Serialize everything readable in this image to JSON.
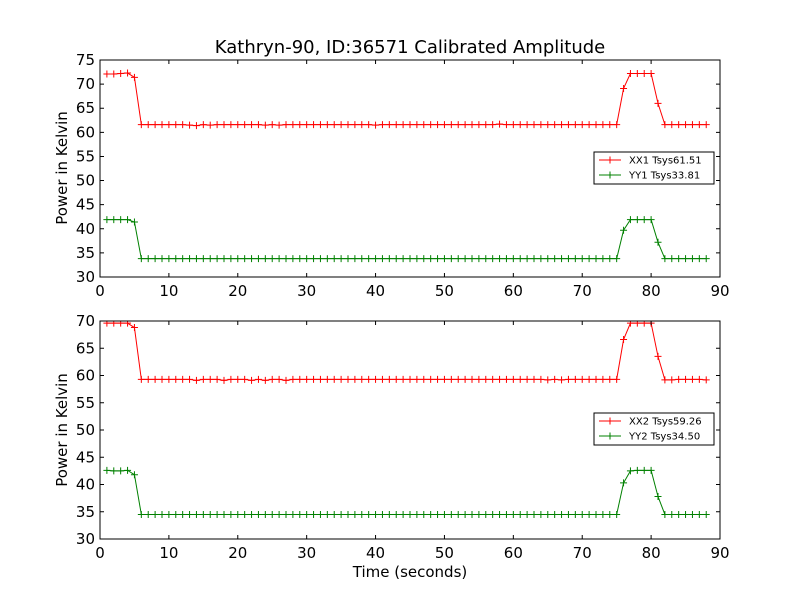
{
  "chart_data": [
    {
      "type": "line",
      "title": "Kathryn-90, ID:36571 Calibrated Amplitude",
      "xlabel": "",
      "ylabel": "Power in Kelvin",
      "xlim": [
        0,
        90
      ],
      "ylim": [
        30,
        75
      ],
      "xticks": [
        0,
        10,
        20,
        30,
        40,
        50,
        60,
        70,
        80,
        90
      ],
      "yticks": [
        30,
        35,
        40,
        45,
        50,
        55,
        60,
        65,
        70,
        75
      ],
      "grid": false,
      "legend_position": "center-right",
      "x": [
        1,
        2,
        3,
        4,
        5,
        6,
        7,
        8,
        9,
        10,
        11,
        12,
        13,
        14,
        15,
        16,
        17,
        18,
        19,
        20,
        21,
        22,
        23,
        24,
        25,
        26,
        27,
        28,
        29,
        30,
        31,
        32,
        33,
        34,
        35,
        36,
        37,
        38,
        39,
        40,
        41,
        42,
        43,
        44,
        45,
        46,
        47,
        48,
        49,
        50,
        51,
        52,
        53,
        54,
        55,
        56,
        57,
        58,
        59,
        60,
        61,
        62,
        63,
        64,
        65,
        66,
        67,
        68,
        69,
        70,
        71,
        72,
        73,
        74,
        75,
        76,
        77,
        78,
        79,
        80,
        81,
        82,
        83,
        84,
        85,
        86,
        87,
        88
      ],
      "series": [
        {
          "name": "XX1 Tsys61.51",
          "color": "#ff0000",
          "values": [
            72.1,
            72.1,
            72.2,
            72.3,
            71.4,
            61.6,
            61.6,
            61.6,
            61.6,
            61.6,
            61.6,
            61.6,
            61.5,
            61.4,
            61.6,
            61.5,
            61.6,
            61.6,
            61.6,
            61.6,
            61.6,
            61.6,
            61.6,
            61.5,
            61.6,
            61.5,
            61.6,
            61.6,
            61.6,
            61.6,
            61.6,
            61.6,
            61.6,
            61.6,
            61.6,
            61.6,
            61.6,
            61.6,
            61.6,
            61.5,
            61.6,
            61.6,
            61.6,
            61.6,
            61.6,
            61.6,
            61.6,
            61.6,
            61.6,
            61.6,
            61.6,
            61.6,
            61.6,
            61.6,
            61.6,
            61.6,
            61.6,
            61.7,
            61.6,
            61.6,
            61.6,
            61.6,
            61.6,
            61.6,
            61.6,
            61.6,
            61.6,
            61.6,
            61.6,
            61.6,
            61.6,
            61.6,
            61.6,
            61.6,
            61.6,
            69.1,
            72.2,
            72.2,
            72.2,
            72.2,
            66.0,
            61.6,
            61.6,
            61.6,
            61.6,
            61.6,
            61.6,
            61.6
          ]
        },
        {
          "name": "YY1 Tsys33.81",
          "color": "#008000",
          "values": [
            41.9,
            41.9,
            41.9,
            41.9,
            41.4,
            33.8,
            33.8,
            33.8,
            33.8,
            33.8,
            33.8,
            33.8,
            33.8,
            33.8,
            33.8,
            33.8,
            33.8,
            33.8,
            33.8,
            33.8,
            33.8,
            33.8,
            33.8,
            33.8,
            33.8,
            33.8,
            33.8,
            33.8,
            33.8,
            33.8,
            33.8,
            33.8,
            33.8,
            33.8,
            33.8,
            33.8,
            33.8,
            33.8,
            33.8,
            33.8,
            33.8,
            33.8,
            33.8,
            33.8,
            33.8,
            33.8,
            33.8,
            33.8,
            33.8,
            33.8,
            33.8,
            33.8,
            33.8,
            33.8,
            33.8,
            33.8,
            33.8,
            33.8,
            33.8,
            33.8,
            33.8,
            33.8,
            33.8,
            33.8,
            33.8,
            33.8,
            33.8,
            33.8,
            33.8,
            33.8,
            33.8,
            33.8,
            33.8,
            33.8,
            33.8,
            39.7,
            41.9,
            41.9,
            41.9,
            41.9,
            37.2,
            33.8,
            33.8,
            33.8,
            33.8,
            33.8,
            33.8,
            33.8
          ]
        }
      ]
    },
    {
      "type": "line",
      "title": "",
      "xlabel": "Time (seconds)",
      "ylabel": "Power in Kelvin",
      "xlim": [
        0,
        90
      ],
      "ylim": [
        30,
        70
      ],
      "xticks": [
        0,
        10,
        20,
        30,
        40,
        50,
        60,
        70,
        80,
        90
      ],
      "yticks": [
        30,
        35,
        40,
        45,
        50,
        55,
        60,
        65,
        70
      ],
      "grid": false,
      "legend_position": "lower-right",
      "x": [
        1,
        2,
        3,
        4,
        5,
        6,
        7,
        8,
        9,
        10,
        11,
        12,
        13,
        14,
        15,
        16,
        17,
        18,
        19,
        20,
        21,
        22,
        23,
        24,
        25,
        26,
        27,
        28,
        29,
        30,
        31,
        32,
        33,
        34,
        35,
        36,
        37,
        38,
        39,
        40,
        41,
        42,
        43,
        44,
        45,
        46,
        47,
        48,
        49,
        50,
        51,
        52,
        53,
        54,
        55,
        56,
        57,
        58,
        59,
        60,
        61,
        62,
        63,
        64,
        65,
        66,
        67,
        68,
        69,
        70,
        71,
        72,
        73,
        74,
        75,
        76,
        77,
        78,
        79,
        80,
        81,
        82,
        83,
        84,
        85,
        86,
        87,
        88
      ],
      "series": [
        {
          "name": "XX2 Tsys59.26",
          "color": "#ff0000",
          "values": [
            69.6,
            69.6,
            69.6,
            69.6,
            68.8,
            59.3,
            59.3,
            59.3,
            59.3,
            59.3,
            59.3,
            59.3,
            59.3,
            59.1,
            59.3,
            59.3,
            59.3,
            59.1,
            59.3,
            59.3,
            59.3,
            59.1,
            59.3,
            59.1,
            59.3,
            59.3,
            59.1,
            59.3,
            59.3,
            59.3,
            59.3,
            59.3,
            59.3,
            59.3,
            59.3,
            59.3,
            59.3,
            59.3,
            59.3,
            59.3,
            59.3,
            59.3,
            59.3,
            59.3,
            59.3,
            59.3,
            59.3,
            59.3,
            59.3,
            59.3,
            59.3,
            59.3,
            59.3,
            59.3,
            59.3,
            59.3,
            59.3,
            59.3,
            59.3,
            59.3,
            59.3,
            59.3,
            59.3,
            59.3,
            59.2,
            59.3,
            59.2,
            59.3,
            59.3,
            59.3,
            59.3,
            59.3,
            59.3,
            59.3,
            59.3,
            66.6,
            69.6,
            69.6,
            69.6,
            69.6,
            63.5,
            59.2,
            59.2,
            59.3,
            59.3,
            59.3,
            59.3,
            59.2
          ]
        },
        {
          "name": "YY2 Tsys34.50",
          "color": "#008000",
          "values": [
            42.6,
            42.5,
            42.5,
            42.6,
            41.8,
            34.5,
            34.5,
            34.5,
            34.5,
            34.5,
            34.5,
            34.5,
            34.5,
            34.5,
            34.5,
            34.5,
            34.5,
            34.5,
            34.5,
            34.5,
            34.5,
            34.5,
            34.5,
            34.5,
            34.5,
            34.5,
            34.5,
            34.5,
            34.5,
            34.5,
            34.5,
            34.5,
            34.5,
            34.5,
            34.5,
            34.5,
            34.5,
            34.5,
            34.5,
            34.5,
            34.5,
            34.5,
            34.5,
            34.5,
            34.5,
            34.5,
            34.5,
            34.5,
            34.5,
            34.5,
            34.5,
            34.5,
            34.5,
            34.5,
            34.5,
            34.5,
            34.5,
            34.5,
            34.5,
            34.5,
            34.5,
            34.5,
            34.5,
            34.5,
            34.5,
            34.5,
            34.5,
            34.5,
            34.5,
            34.5,
            34.5,
            34.5,
            34.5,
            34.5,
            34.5,
            40.3,
            42.5,
            42.6,
            42.6,
            42.6,
            37.8,
            34.5,
            34.5,
            34.5,
            34.5,
            34.5,
            34.5,
            34.5
          ]
        }
      ]
    }
  ]
}
